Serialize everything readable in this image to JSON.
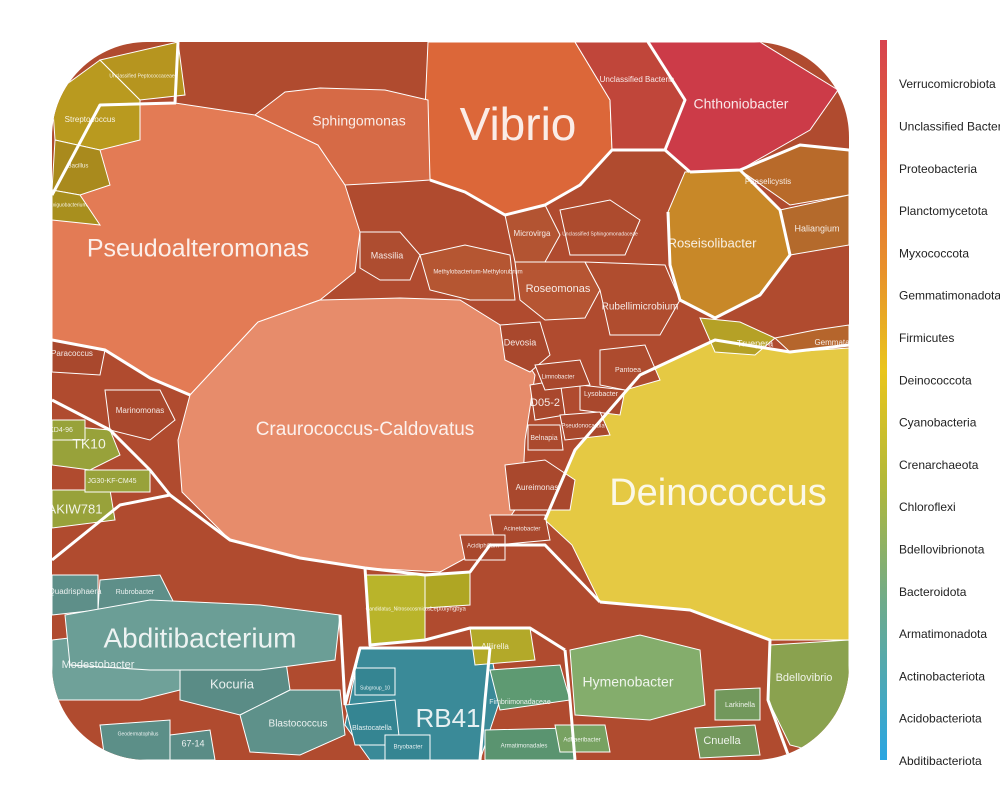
{
  "chart_data": {
    "type": "voronoi-treemap",
    "title": "",
    "legend": {
      "placement": "right",
      "entries": [
        {
          "name": "Verrucomicrobiota",
          "color": "#d7434f"
        },
        {
          "name": "Unclassified Bacteria",
          "color": "#da4f40"
        },
        {
          "name": "Proteobacteria",
          "color": "#e06238"
        },
        {
          "name": "Planctomycetota",
          "color": "#e46f32"
        },
        {
          "name": "Myxococcota",
          "color": "#e77e2e"
        },
        {
          "name": "Gemmatimonadota",
          "color": "#e8912b"
        },
        {
          "name": "Firmicutes",
          "color": "#e9a42a"
        },
        {
          "name": "Deinococcota",
          "color": "#e8c540"
        },
        {
          "name": "Cyanobacteria",
          "color": "#e6d23a"
        },
        {
          "name": "Crenarchaeota",
          "color": "#c9c336"
        },
        {
          "name": "Chloroflexi",
          "color": "#a9b34a"
        },
        {
          "name": "Bdellovibrionota",
          "color": "#8fac5e"
        },
        {
          "name": "Bacteroidota",
          "color": "#7cab78"
        },
        {
          "name": "Armatimonadota",
          "color": "#6aa79a"
        },
        {
          "name": "Actinobacteriota",
          "color": "#55a8b8"
        },
        {
          "name": "Acidobacteriota",
          "color": "#3a9fd0"
        },
        {
          "name": "Abditibacteriota",
          "color": "#2aa6e2"
        }
      ]
    },
    "cells": [
      {
        "label": "Vibrio",
        "phylum": "Proteobacteria",
        "color": "#dc6739",
        "size": "xl"
      },
      {
        "label": "Pseudoalteromonas",
        "phylum": "Proteobacteria",
        "color": "#e37b55",
        "size": "l"
      },
      {
        "label": "Craurococcus-Caldovatus",
        "phylum": "Proteobacteria",
        "color": "#e78c6b",
        "size": "l"
      },
      {
        "label": "Sphingomonas",
        "phylum": "Proteobacteria",
        "color": "#d66a46",
        "size": "m"
      },
      {
        "label": "Unclassified Bacteria",
        "phylum": "Unclassified Bacteria",
        "color": "#c0463a",
        "size": "s"
      },
      {
        "label": "Chthoniobacter",
        "phylum": "Verrucomicrobiota",
        "color": "#cc3b48",
        "size": "m"
      },
      {
        "label": "Roseisolibacter",
        "phylum": "Gemmatimonadota",
        "color": "#c88828",
        "size": "m"
      },
      {
        "label": "Phaselicystis",
        "phylum": "Myxococcota",
        "color": "#b86a2a",
        "size": "xs"
      },
      {
        "label": "Haliangium",
        "phylum": "Myxococcota",
        "color": "#b46a2c",
        "size": "s"
      },
      {
        "label": "Deinococcus",
        "phylum": "Deinococcota",
        "color": "#e5c943",
        "size": "xl"
      },
      {
        "label": "Truepera",
        "phylum": "Deinococcota",
        "color": "#b5a126",
        "size": "s"
      },
      {
        "label": "Gemmata",
        "phylum": "Planctomycetota",
        "color": "#b5652c",
        "size": "s"
      },
      {
        "label": "Streptococcus",
        "phylum": "Firmicutes",
        "color": "#b99a1f",
        "size": "s"
      },
      {
        "label": "Bacillus",
        "phylum": "Firmicutes",
        "color": "#a98a1d",
        "size": "xs"
      },
      {
        "label": "Unclassified Peptococcaceae",
        "phylum": "Firmicutes",
        "color": "#b6951f",
        "size": "xs"
      },
      {
        "label": "Exiguobacterium",
        "phylum": "Firmicutes",
        "color": "#a88f1e",
        "size": "xs"
      },
      {
        "label": "Massilia",
        "phylum": "Proteobacteria",
        "color": "#ae4d30",
        "size": "s"
      },
      {
        "label": "Microvirga",
        "phylum": "Proteobacteria",
        "color": "#b35432",
        "size": "s"
      },
      {
        "label": "Roseomonas",
        "phylum": "Proteobacteria",
        "color": "#b65533",
        "size": "m"
      },
      {
        "label": "Rubellimicrobium",
        "phylum": "Proteobacteria",
        "color": "#b04d2f",
        "size": "s"
      },
      {
        "label": "Devosia",
        "phylum": "Proteobacteria",
        "color": "#a9482d",
        "size": "s"
      },
      {
        "label": "D05-2",
        "phylum": "Proteobacteria",
        "color": "#a9482d",
        "size": "s"
      },
      {
        "label": "Pantoea",
        "phylum": "Proteobacteria",
        "color": "#ad4b2e",
        "size": "xs"
      },
      {
        "label": "Lysobacter",
        "phylum": "Proteobacteria",
        "color": "#a9482d",
        "size": "xs"
      },
      {
        "label": "Belnapia",
        "phylum": "Proteobacteria",
        "color": "#ab4a2e",
        "size": "xs"
      },
      {
        "label": "Aureimonas",
        "phylum": "Proteobacteria",
        "color": "#a9482d",
        "size": "s"
      },
      {
        "label": "Acinetobacter",
        "phylum": "Proteobacteria",
        "color": "#a9482d",
        "size": "xs"
      },
      {
        "label": "Acidiphilium",
        "phylum": "Proteobacteria",
        "color": "#a9482d",
        "size": "xs"
      },
      {
        "label": "Marinomonas",
        "phylum": "Proteobacteria",
        "color": "#a9482d",
        "size": "xs"
      },
      {
        "label": "Paracoccus",
        "phylum": "Proteobacteria",
        "color": "#a9482d",
        "size": "xs"
      },
      {
        "label": "Methylobacterium-Methylorubrum",
        "phylum": "Proteobacteria",
        "color": "#b55632",
        "size": "xs"
      },
      {
        "label": "Unclassified Sphingomonadaceae",
        "phylum": "Proteobacteria",
        "color": "#ad4b2e",
        "size": "xs"
      },
      {
        "label": "Limnobacter",
        "phylum": "Proteobacteria",
        "color": "#a9482d",
        "size": "xs"
      },
      {
        "label": "Pseudonocardia",
        "phylum": "Proteobacteria",
        "color": "#a9482d",
        "size": "xs"
      },
      {
        "label": "Rubrobacter",
        "phylum": "Actinobacteriota",
        "color": "#5e8f89",
        "size": "xs"
      },
      {
        "label": "Quadrisphaera",
        "phylum": "Actinobacteriota",
        "color": "#5e8f89",
        "size": "xs"
      },
      {
        "label": "Modestobacter",
        "phylum": "Actinobacteriota",
        "color": "#6fa199",
        "size": "s"
      },
      {
        "label": "Kocuria",
        "phylum": "Actinobacteriota",
        "color": "#5a8c86",
        "size": "s"
      },
      {
        "label": "Blastococcus",
        "phylum": "Actinobacteriota",
        "color": "#5e918a",
        "size": "s"
      },
      {
        "label": "67-14",
        "phylum": "Actinobacteriota",
        "color": "#5a8c86",
        "size": "xs"
      },
      {
        "label": "Geodermatophilus",
        "phylum": "Actinobacteriota",
        "color": "#5c8f88",
        "size": "xs"
      },
      {
        "label": "Abditibacterium",
        "phylum": "Abditibacteriota",
        "color": "#6b9e96",
        "size": "l"
      },
      {
        "label": "RB41",
        "phylum": "Acidobacteriota",
        "color": "#3a8a98",
        "size": "m"
      },
      {
        "label": "Blastocatella",
        "phylum": "Acidobacteriota",
        "color": "#358592",
        "size": "xs"
      },
      {
        "label": "Bryobacter",
        "phylum": "Acidobacteriota",
        "color": "#358592",
        "size": "xs"
      },
      {
        "label": "Subgroup_10",
        "phylum": "Acidobacteriota",
        "color": "#358592",
        "size": "xs"
      },
      {
        "label": "Fimbriimonadaceae",
        "phylum": "Armatimonadota",
        "color": "#5e9a72",
        "size": "xs"
      },
      {
        "label": "Armatimonadales",
        "phylum": "Armatimonadota",
        "color": "#5a9470",
        "size": "xs"
      },
      {
        "label": "Hymenobacter",
        "phylum": "Bacteroidota",
        "color": "#84ad6c",
        "size": "m"
      },
      {
        "label": "Adhaeribacter",
        "phylum": "Bacteroidota",
        "color": "#78a262",
        "size": "xs"
      },
      {
        "label": "Larkinella",
        "phylum": "Bacteroidota",
        "color": "#72985c",
        "size": "xs"
      },
      {
        "label": "Cnuella",
        "phylum": "Bacteroidota",
        "color": "#74995e",
        "size": "s"
      },
      {
        "label": "Bdellovibrio",
        "phylum": "Bdellovibrionota",
        "color": "#8aa24f",
        "size": "s"
      },
      {
        "label": "Alliirella",
        "phylum": "Cyanobacteria",
        "color": "#b3a929",
        "size": "xs"
      },
      {
        "label": "Leptolyngbya",
        "phylum": "Cyanobacteria",
        "color": "#afa623",
        "size": "xs"
      },
      {
        "label": "TK10",
        "phylum": "Chloroflexi",
        "color": "#98a23a",
        "size": "s"
      },
      {
        "label": "AKIW781",
        "phylum": "Chloroflexi",
        "color": "#98a23a",
        "size": "s"
      },
      {
        "label": "JG30-KF-CM45",
        "phylum": "Chloroflexi",
        "color": "#98a23a",
        "size": "xs"
      },
      {
        "label": "KD4-96",
        "phylum": "Chloroflexi",
        "color": "#98a23a",
        "size": "xs"
      },
      {
        "label": "Candidatus_Nitrosocosmicus",
        "phylum": "Crenarchaeota",
        "color": "#b9b42a",
        "size": "xs"
      }
    ]
  }
}
